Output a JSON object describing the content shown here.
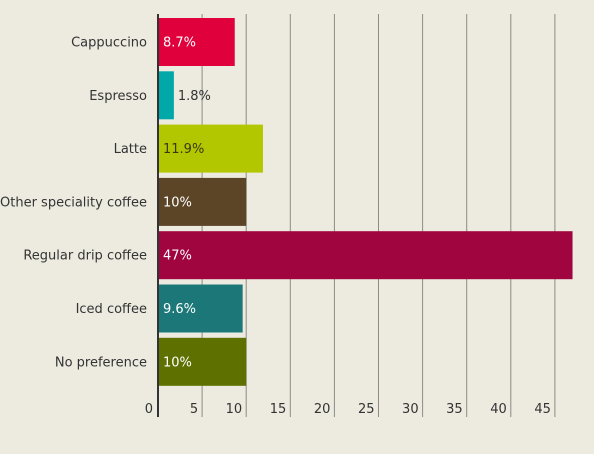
{
  "chart_data": {
    "type": "bar",
    "orientation": "horizontal",
    "categories": [
      "Cappuccino",
      "Espresso",
      "Latte",
      "Other speciality coffee",
      "Regular drip coffee",
      "Iced coffee",
      "No preference"
    ],
    "values": [
      8.7,
      1.8,
      11.9,
      10,
      47,
      9.6,
      10
    ],
    "data_labels": [
      "8.7%",
      "1.8%",
      "11.9%",
      "10%",
      "47%",
      "9.6%",
      "10%"
    ],
    "bar_colors": [
      "#e0003c",
      "#00a8a8",
      "#b3c700",
      "#5c4526",
      "#a0053f",
      "#1c7878",
      "#5d7000"
    ],
    "xlim": [
      0,
      48
    ],
    "x_ticks": [
      0,
      5,
      10,
      15,
      20,
      25,
      30,
      35,
      40,
      45
    ],
    "x_tick_labels": [
      "0",
      "5",
      "10",
      "15",
      "20",
      "25",
      "30",
      "35",
      "40",
      "45"
    ],
    "grid": "vertical",
    "title": "",
    "xlabel": "",
    "ylabel": ""
  }
}
